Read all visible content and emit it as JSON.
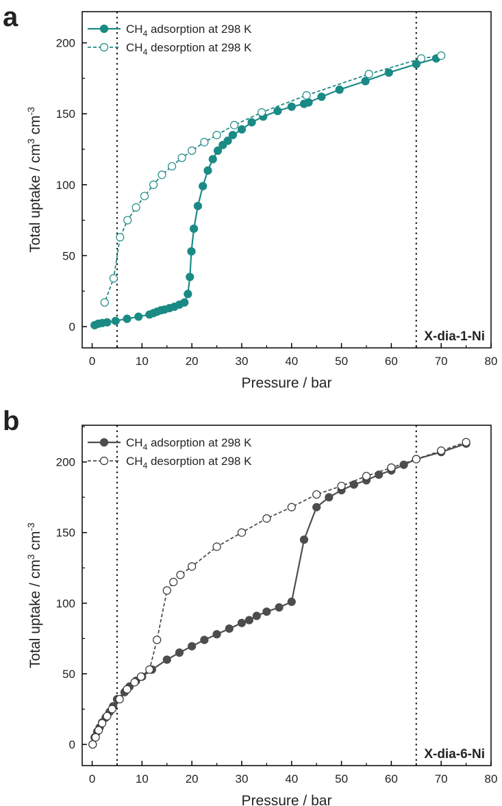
{
  "chart_data": [
    {
      "panel_label": "a",
      "type": "scatter",
      "xlabel": "Pressure / bar",
      "ylabel": {
        "main": "Total uptake / cm",
        "sup1": "3",
        "mid": " cm",
        "sup2": "-3"
      },
      "xlim": [
        -2,
        80
      ],
      "ylim": [
        -15,
        222
      ],
      "xticks": [
        0,
        10,
        20,
        30,
        40,
        50,
        60,
        70,
        80
      ],
      "yticks": [
        0,
        50,
        100,
        150,
        200
      ],
      "xtick_labels": [
        "0",
        "10",
        "20",
        "30",
        "40",
        "50",
        "60",
        "70",
        "80"
      ],
      "ytick_labels": [
        "0",
        "50",
        "100",
        "150",
        "200"
      ],
      "vlines": [
        5,
        65
      ],
      "annotation": "X-dia-1-Ni",
      "color": "#1a8a85",
      "grid": false,
      "legend_position": "top-left",
      "series": [
        {
          "name": {
            "pre": "CH",
            "sub": "4",
            "post": " adsorption at 298 K"
          },
          "style": "solid",
          "marker": "filled",
          "x": [
            0.5,
            1.2,
            2.0,
            3.0,
            4.7,
            7.0,
            9.3,
            11.5,
            12.3,
            13.0,
            13.8,
            14.5,
            15.5,
            16.5,
            17.5,
            18.5,
            19.2,
            19.6,
            19.9,
            20.4,
            21.2,
            22.2,
            23.2,
            24.2,
            25.2,
            26.2,
            27.2,
            28.2,
            30.0,
            32.0,
            34.3,
            37.2,
            40.0,
            42.5,
            43.4,
            46.0,
            49.6,
            54.8,
            59.5,
            65.0,
            69.0
          ],
          "y": [
            1,
            2,
            2.5,
            3,
            4,
            5.5,
            7,
            8.5,
            9.5,
            10.5,
            11.5,
            12,
            13,
            14,
            15.5,
            17,
            23,
            35,
            53,
            69,
            85,
            99,
            110,
            118,
            124,
            128,
            131,
            135,
            139,
            144,
            148,
            152,
            155,
            157,
            158,
            162,
            167,
            173,
            179,
            185,
            189
          ]
        },
        {
          "name": {
            "pre": "CH",
            "sub": "4",
            "post": " desorption at 298 K"
          },
          "style": "dashed",
          "marker": "open",
          "x": [
            70.0,
            66.0,
            55.5,
            43.0,
            34.0,
            28.5,
            25.0,
            22.5,
            20.0,
            18.0,
            16.0,
            14.0,
            12.3,
            10.5,
            8.8,
            7.1,
            5.6,
            4.3,
            2.5
          ],
          "y": [
            191,
            189,
            178,
            163,
            151,
            142,
            135,
            130,
            124,
            119,
            113,
            107,
            100,
            92,
            84,
            75,
            63,
            34,
            17
          ]
        }
      ]
    },
    {
      "panel_label": "b",
      "type": "scatter",
      "xlabel": "Pressure / bar",
      "ylabel": {
        "main": "Total uptake / cm",
        "sup1": "3",
        "mid": " cm",
        "sup2": "-3"
      },
      "xlim": [
        -2,
        80
      ],
      "ylim": [
        -15,
        226
      ],
      "xticks": [
        0,
        10,
        20,
        30,
        40,
        50,
        60,
        70,
        80
      ],
      "yticks": [
        0,
        50,
        100,
        150,
        200
      ],
      "xtick_labels": [
        "0",
        "10",
        "20",
        "30",
        "40",
        "50",
        "60",
        "70",
        "80"
      ],
      "ytick_labels": [
        "0",
        "50",
        "100",
        "150",
        "200"
      ],
      "vlines": [
        5,
        65
      ],
      "annotation": "X-dia-6-Ni",
      "color": "#4d4d4d",
      "grid": false,
      "legend_position": "top-left",
      "series": [
        {
          "name": {
            "pre": "CH",
            "sub": "4",
            "post": " adsorption at 298 K"
          },
          "style": "solid",
          "marker": "filled",
          "x": [
            0.1,
            0.5,
            1.0,
            1.5,
            2.0,
            2.7,
            3.5,
            4.2,
            5.0,
            6.5,
            7.5,
            8.8,
            10.0,
            12.0,
            15.0,
            17.5,
            20.0,
            22.5,
            25.0,
            27.5,
            30.0,
            31.5,
            33.0,
            35.0,
            37.5,
            40.0,
            42.5,
            45.0,
            47.5,
            50.0,
            52.5,
            55.0,
            57.5,
            60.0,
            62.5,
            65.0,
            70.0,
            75.0
          ],
          "y": [
            0,
            5,
            9,
            12,
            15.5,
            19,
            23,
            27,
            32,
            37,
            41,
            45,
            48,
            53,
            60,
            65,
            69.5,
            74,
            78,
            82,
            86,
            88,
            91,
            94,
            97,
            101,
            145,
            168,
            175,
            180,
            184,
            187,
            191,
            194,
            198,
            202,
            207,
            213
          ]
        },
        {
          "name": {
            "pre": "CH",
            "sub": "4",
            "post": " desorption at 298 K"
          },
          "style": "dashed",
          "marker": "open",
          "x": [
            75.0,
            70.0,
            65.0,
            60.0,
            55.0,
            50.0,
            45.0,
            40.0,
            35.0,
            30.0,
            25.0,
            20.0,
            17.7,
            16.3,
            15.0,
            13.0,
            11.5,
            9.8,
            8.5,
            7.0,
            5.5,
            4.0,
            3.0,
            2.0,
            1.3,
            0.7,
            0.1
          ],
          "y": [
            214,
            208,
            202,
            196,
            190,
            183,
            177,
            168,
            160,
            150,
            140,
            126,
            120,
            115,
            109,
            74,
            53,
            48,
            44,
            39,
            32,
            25,
            20,
            15,
            10,
            5,
            0
          ]
        }
      ]
    }
  ]
}
